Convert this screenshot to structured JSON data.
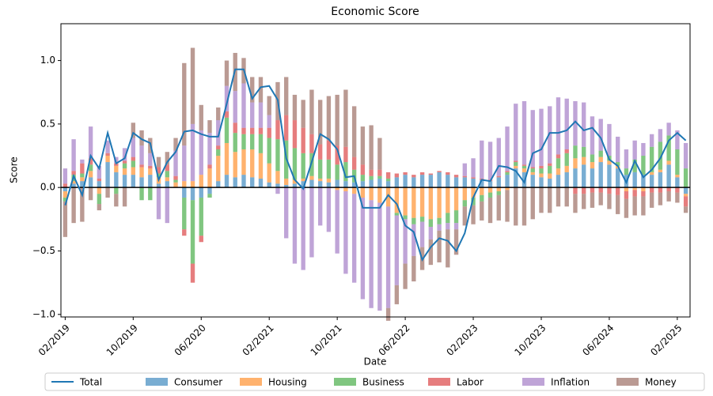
{
  "chart_data": {
    "type": "bar",
    "stacked": true,
    "title": "Economic Score",
    "xlabel": "Date",
    "ylabel": "Score",
    "categories": [
      "02/2019",
      null,
      null,
      null,
      null,
      null,
      null,
      null,
      "10/2019",
      null,
      null,
      null,
      null,
      null,
      null,
      null,
      "06/2020",
      null,
      null,
      null,
      null,
      null,
      null,
      null,
      "02/2021",
      null,
      null,
      null,
      null,
      null,
      null,
      null,
      "10/2021",
      null,
      null,
      null,
      null,
      null,
      null,
      null,
      "06/2022",
      null,
      null,
      null,
      null,
      null,
      null,
      null,
      "02/2023",
      null,
      null,
      null,
      null,
      null,
      null,
      null,
      "10/2023",
      null,
      null,
      null,
      null,
      null,
      null,
      null,
      "06/2024",
      null,
      null,
      null,
      null,
      null,
      null,
      null,
      "02/2025",
      null
    ],
    "ylim": [
      -1.02,
      1.29
    ],
    "yticks": [
      {
        "value": -1.0,
        "label": "−1.0"
      },
      {
        "value": -0.5,
        "label": "−0.5"
      },
      {
        "value": 0.0,
        "label": "0.0"
      },
      {
        "value": 0.5,
        "label": "0.5"
      },
      {
        "value": 1.0,
        "label": "1.0"
      }
    ],
    "bar_opacity": 0.6,
    "legend": "bottom",
    "line_series": {
      "name": "Total",
      "color": "#1f77b4",
      "values": [
        -0.14,
        0.09,
        -0.06,
        0.25,
        0.15,
        0.43,
        0.19,
        0.23,
        0.43,
        0.38,
        0.35,
        0.06,
        0.2,
        0.28,
        0.44,
        0.45,
        0.42,
        0.4,
        0.4,
        0.66,
        0.93,
        0.93,
        0.7,
        0.79,
        0.8,
        0.69,
        0.23,
        0.06,
        -0.01,
        0.2,
        0.42,
        0.38,
        0.3,
        0.08,
        0.09,
        -0.16,
        -0.16,
        -0.16,
        -0.06,
        -0.13,
        -0.3,
        -0.35,
        -0.57,
        -0.47,
        -0.4,
        -0.42,
        -0.5,
        -0.36,
        -0.08,
        0.06,
        0.05,
        0.17,
        0.16,
        0.13,
        0.04,
        0.27,
        0.3,
        0.43,
        0.43,
        0.45,
        0.52,
        0.45,
        0.47,
        0.39,
        0.22,
        0.17,
        0.04,
        0.21,
        0.08,
        0.14,
        0.23,
        0.37,
        0.43,
        0.37
      ]
    },
    "series": [
      {
        "name": "Consumer",
        "color": "#1f77b4",
        "values": [
          -0.03,
          0.03,
          0.05,
          0.08,
          0.05,
          0.2,
          0.12,
          0.1,
          0.1,
          0.08,
          0.1,
          0.03,
          0.05,
          0.0,
          -0.08,
          -0.1,
          -0.08,
          -0.05,
          0.05,
          0.1,
          0.08,
          0.1,
          0.08,
          0.07,
          0.04,
          0.03,
          0.02,
          0.03,
          0.05,
          0.06,
          0.05,
          0.04,
          0.06,
          0.05,
          0.04,
          0.05,
          0.06,
          0.07,
          0.05,
          0.08,
          0.1,
          0.08,
          0.1,
          0.1,
          0.12,
          0.1,
          0.08,
          0.08,
          0.07,
          0.06,
          0.05,
          0.08,
          0.1,
          0.15,
          0.12,
          0.1,
          0.08,
          0.07,
          0.1,
          0.12,
          0.15,
          0.18,
          0.15,
          0.2,
          0.18,
          0.15,
          0.1,
          0.12,
          0.1,
          0.1,
          0.12,
          0.18,
          0.08,
          -0.05
        ]
      },
      {
        "name": "Housing",
        "color": "#ff7f0e",
        "values": [
          -0.05,
          0.02,
          0.03,
          0.05,
          -0.05,
          0.05,
          0.05,
          0.05,
          0.06,
          0.08,
          0.05,
          0.05,
          0.03,
          0.04,
          0.05,
          0.05,
          0.1,
          0.15,
          0.2,
          0.25,
          0.2,
          0.2,
          0.22,
          0.2,
          0.15,
          0.1,
          0.05,
          0.03,
          0.02,
          0.03,
          0.02,
          0.03,
          -0.02,
          -0.03,
          -0.05,
          -0.08,
          -0.1,
          -0.12,
          -0.15,
          -0.2,
          -0.22,
          -0.24,
          -0.23,
          -0.25,
          -0.24,
          -0.2,
          -0.18,
          -0.1,
          -0.08,
          -0.06,
          -0.04,
          -0.03,
          -0.02,
          0.02,
          0.03,
          0.02,
          0.03,
          0.04,
          0.05,
          0.05,
          0.08,
          0.06,
          0.05,
          0.04,
          0.03,
          0.02,
          -0.03,
          -0.02,
          -0.03,
          0.02,
          0.02,
          0.03,
          0.02,
          -0.02
        ]
      },
      {
        "name": "Business",
        "color": "#2ca02c",
        "values": [
          -0.03,
          0.05,
          0.03,
          0.05,
          -0.08,
          0.0,
          -0.05,
          0.04,
          0.05,
          -0.1,
          -0.1,
          0.03,
          0.05,
          0.02,
          -0.25,
          -0.5,
          -0.3,
          -0.03,
          0.05,
          0.2,
          0.15,
          0.12,
          0.12,
          0.15,
          0.2,
          0.25,
          0.3,
          0.25,
          0.2,
          0.18,
          0.15,
          0.15,
          0.12,
          0.15,
          0.1,
          0.05,
          0.03,
          0.02,
          0.02,
          -0.02,
          -0.03,
          -0.05,
          -0.04,
          -0.06,
          -0.05,
          -0.08,
          -0.1,
          -0.05,
          -0.06,
          -0.05,
          -0.04,
          -0.03,
          0.02,
          0.03,
          0.02,
          0.03,
          0.04,
          0.06,
          0.08,
          0.1,
          0.1,
          0.08,
          0.06,
          0.05,
          0.04,
          0.03,
          0.05,
          0.1,
          0.15,
          0.2,
          0.22,
          0.2,
          0.2,
          0.15
        ]
      },
      {
        "name": "Labor",
        "color": "#d62728",
        "values": [
          0.03,
          0.03,
          0.08,
          0.05,
          0.02,
          0.02,
          0.02,
          0.02,
          0.03,
          0.02,
          0.02,
          0.05,
          0.05,
          0.03,
          -0.05,
          -0.15,
          -0.05,
          0.03,
          0.03,
          0.05,
          0.08,
          0.05,
          0.05,
          0.05,
          0.08,
          0.15,
          0.2,
          0.22,
          0.2,
          0.15,
          0.12,
          0.15,
          0.15,
          0.12,
          0.1,
          0.08,
          0.05,
          0.05,
          0.05,
          0.03,
          0.02,
          0.02,
          0.02,
          0.01,
          0.01,
          0.02,
          0.02,
          0.01,
          0.01,
          0.01,
          0.01,
          0.01,
          0.01,
          0.01,
          0.01,
          0.01,
          0.02,
          0.02,
          0.03,
          0.03,
          -0.05,
          -0.05,
          -0.04,
          -0.04,
          -0.05,
          -0.06,
          -0.06,
          -0.05,
          -0.04,
          -0.04,
          -0.04,
          -0.03,
          -0.04,
          -0.08
        ]
      },
      {
        "name": "Inflation",
        "color": "#9467bd",
        "values": [
          0.12,
          0.25,
          0.03,
          0.25,
          0.1,
          0.1,
          0.05,
          0.1,
          0.15,
          0.15,
          0.1,
          -0.25,
          -0.28,
          0.2,
          0.28,
          0.45,
          0.35,
          0.25,
          0.2,
          0.2,
          0.25,
          0.35,
          0.2,
          0.2,
          0.1,
          -0.05,
          -0.4,
          -0.6,
          -0.65,
          -0.55,
          -0.3,
          -0.35,
          -0.5,
          -0.65,
          -0.7,
          -0.8,
          -0.85,
          -0.85,
          -0.8,
          -0.55,
          -0.35,
          -0.25,
          -0.2,
          -0.1,
          -0.05,
          -0.05,
          -0.05,
          0.1,
          0.15,
          0.3,
          0.3,
          0.3,
          0.35,
          0.45,
          0.5,
          0.45,
          0.45,
          0.45,
          0.45,
          0.4,
          0.35,
          0.35,
          0.3,
          0.25,
          0.25,
          0.2,
          0.15,
          0.15,
          0.1,
          0.1,
          0.1,
          0.1,
          0.15,
          0.2
        ]
      },
      {
        "name": "Money",
        "color": "#8c564b",
        "values": [
          -0.28,
          -0.28,
          -0.27,
          -0.1,
          -0.05,
          -0.08,
          -0.1,
          -0.15,
          0.12,
          0.12,
          0.12,
          0.08,
          0.1,
          0.1,
          0.65,
          0.6,
          0.2,
          0.1,
          0.1,
          0.2,
          0.3,
          0.2,
          0.2,
          0.2,
          0.15,
          0.3,
          0.3,
          0.2,
          0.22,
          0.35,
          0.35,
          0.35,
          0.4,
          0.45,
          0.4,
          0.3,
          0.35,
          0.25,
          -0.1,
          -0.15,
          -0.2,
          -0.2,
          -0.18,
          -0.2,
          -0.25,
          -0.3,
          -0.2,
          -0.15,
          -0.15,
          -0.15,
          -0.2,
          -0.2,
          -0.25,
          -0.3,
          -0.3,
          -0.25,
          -0.2,
          -0.2,
          -0.15,
          -0.15,
          -0.15,
          -0.12,
          -0.12,
          -0.1,
          -0.12,
          -0.15,
          -0.15,
          -0.15,
          -0.15,
          -0.12,
          -0.1,
          -0.08,
          -0.08,
          -0.05
        ]
      }
    ]
  }
}
